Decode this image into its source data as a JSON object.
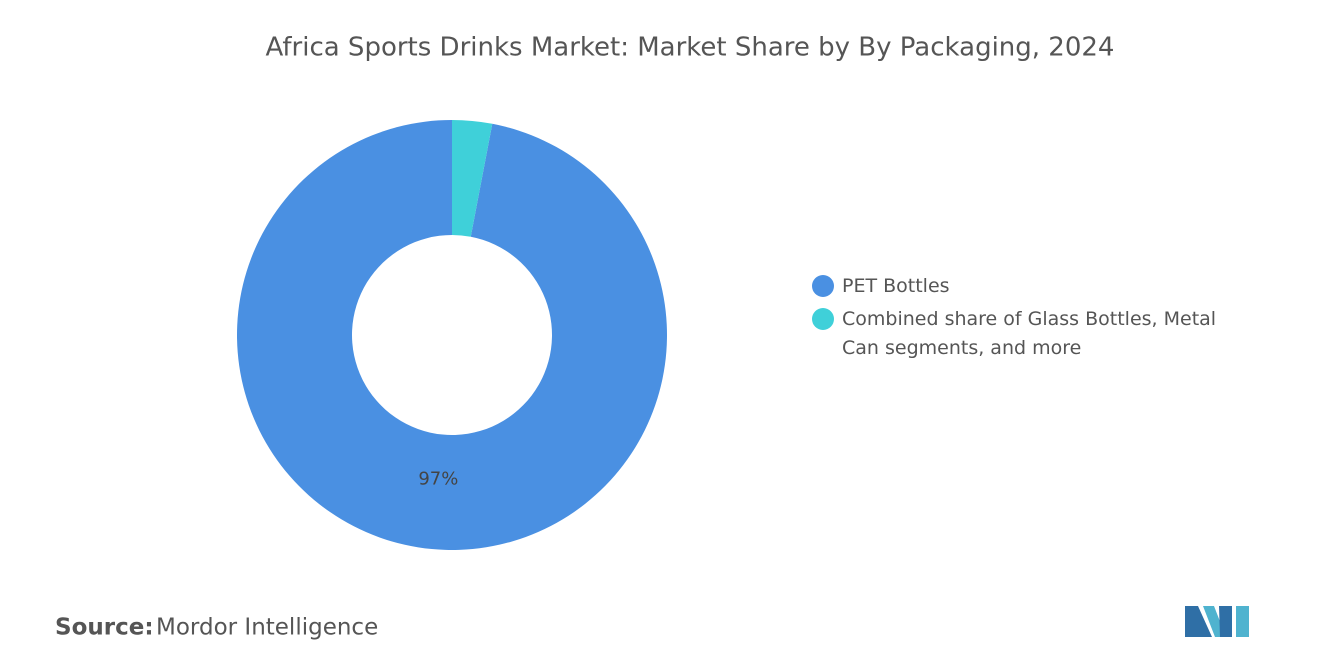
{
  "chart_data": {
    "type": "donut",
    "title": "Africa Sports Drinks Market: Market Share by By Packaging, 2024",
    "categories": [
      "PET Bottles",
      "Combined share of Glass Bottles, Metal Can segments, and more"
    ],
    "values": [
      97,
      3
    ],
    "value_labels": [
      "97%",
      null
    ],
    "colors": [
      "#4a90e2",
      "#3fd0d9"
    ],
    "legend": "right",
    "source_label": "Source:",
    "source": "Mordor Intelligence"
  }
}
